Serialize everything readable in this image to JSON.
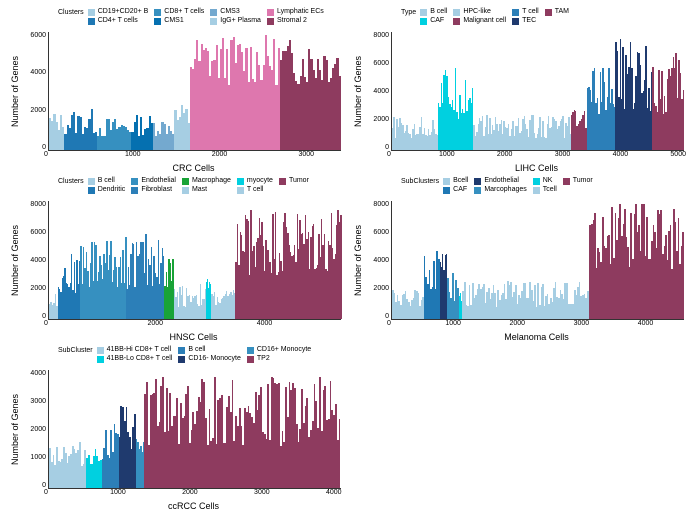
{
  "ylabel": "Number of Genes",
  "panels": [
    {
      "id": "crc",
      "xlabel": "CRC Cells",
      "legend_title": "Clusters",
      "ymax": 6000,
      "yticks": [
        0,
        2000,
        4000,
        6000
      ],
      "xticks": [
        0,
        1000,
        2000,
        3000
      ],
      "xmax": 3400,
      "clusters": [
        {
          "label": "CD19+CD20+ B",
          "color": "#a6cee3",
          "n": 180,
          "hmin": 0.15,
          "hmax": 0.32
        },
        {
          "label": "CD4+ T cells",
          "color": "#1f78b4",
          "n": 380,
          "hmin": 0.12,
          "hmax": 0.35
        },
        {
          "label": "CD8+ T cells",
          "color": "#3690c0",
          "n": 400,
          "hmin": 0.1,
          "hmax": 0.28
        },
        {
          "label": "CMS1",
          "color": "#0570b0",
          "n": 250,
          "hmin": 0.12,
          "hmax": 0.3
        },
        {
          "label": "CMS3",
          "color": "#74a9cf",
          "n": 250,
          "hmin": 0.12,
          "hmax": 0.28
        },
        {
          "label": "IgG+ Plasma",
          "color": "#a6cee3",
          "n": 180,
          "hmin": 0.14,
          "hmax": 0.4
        },
        {
          "label": "Lymphatic ECs",
          "color": "#de77ae",
          "n": 1050,
          "hmin": 0.55,
          "hmax": 0.98
        },
        {
          "label": "Stromal 2",
          "color": "#8e3b5f",
          "n": 710,
          "hmin": 0.55,
          "hmax": 0.95
        }
      ]
    },
    {
      "id": "lihc",
      "xlabel": "LIHC Cells",
      "legend_title": "Type",
      "ymax": 8000,
      "yticks": [
        0,
        2000,
        4000,
        6000,
        8000
      ],
      "xticks": [
        0,
        1000,
        2000,
        3000,
        4000,
        5000
      ],
      "xmax": 5100,
      "clusters": [
        {
          "label": "B cell",
          "color": "#a6cee3",
          "n": 800,
          "hmin": 0.1,
          "hmax": 0.28
        },
        {
          "label": "CAF",
          "color": "#00d0e0",
          "n": 620,
          "hmin": 0.25,
          "hmax": 0.7
        },
        {
          "label": "HPC-like",
          "color": "#a6cee3",
          "n": 1700,
          "hmin": 0.1,
          "hmax": 0.3
        },
        {
          "label": "Malignant cell",
          "color": "#8e3b5f",
          "n": 280,
          "hmin": 0.15,
          "hmax": 0.35
        },
        {
          "label": "T cell",
          "color": "#2c7fb8",
          "n": 500,
          "hmin": 0.3,
          "hmax": 0.7
        },
        {
          "label": "TEC",
          "color": "#1f3a6e",
          "n": 650,
          "hmin": 0.3,
          "hmax": 0.95
        },
        {
          "label": "TAM",
          "color": "#8e3b5f",
          "n": 550,
          "hmin": 0.3,
          "hmax": 0.85
        }
      ]
    },
    {
      "id": "hnsc",
      "xlabel": "HNSC Cells",
      "legend_title": "Clusters",
      "ymax": 8000,
      "yticks": [
        0,
        2000,
        4000,
        6000,
        8000
      ],
      "xticks": [
        0,
        2000,
        4000
      ],
      "xmax": 5400,
      "clusters": [
        {
          "label": "B cell",
          "color": "#a6cee3",
          "n": 160,
          "hmin": 0.1,
          "hmax": 0.22
        },
        {
          "label": "Dendritic",
          "color": "#1f78b4",
          "n": 420,
          "hmin": 0.2,
          "hmax": 0.55
        },
        {
          "label": "Endothelial",
          "color": "#3690c0",
          "n": 850,
          "hmin": 0.25,
          "hmax": 0.7
        },
        {
          "label": "Fibroblast",
          "color": "#2c7fb8",
          "n": 700,
          "hmin": 0.25,
          "hmax": 0.72
        },
        {
          "label": "Macrophage",
          "color": "#19a337",
          "n": 180,
          "hmin": 0.2,
          "hmax": 0.55
        },
        {
          "label": "Mast",
          "color": "#a6cee3",
          "n": 600,
          "hmin": 0.1,
          "hmax": 0.3
        },
        {
          "label": "myocyte",
          "color": "#00d0e0",
          "n": 90,
          "hmin": 0.18,
          "hmax": 0.35
        },
        {
          "label": "T cell",
          "color": "#a6cee3",
          "n": 450,
          "hmin": 0.1,
          "hmax": 0.25
        },
        {
          "label": "Tumor",
          "color": "#8e3b5f",
          "n": 1950,
          "hmin": 0.35,
          "hmax": 0.95
        }
      ]
    },
    {
      "id": "melanoma",
      "xlabel": "Melanoma Cells",
      "legend_title": "SubClusters",
      "ymax": 8000,
      "yticks": [
        0,
        2000,
        4000,
        6000,
        8000
      ],
      "xticks": [
        0,
        1000,
        2000,
        3000,
        4000
      ],
      "xmax": 4600,
      "clusters": [
        {
          "label": "Bcell",
          "color": "#a6cee3",
          "n": 500,
          "hmin": 0.1,
          "hmax": 0.25
        },
        {
          "label": "CAF",
          "color": "#1f78b4",
          "n": 250,
          "hmin": 0.2,
          "hmax": 0.65
        },
        {
          "label": "Endothelial",
          "color": "#1f3a6e",
          "n": 120,
          "hmin": 0.25,
          "hmax": 0.55
        },
        {
          "label": "Marcophages",
          "color": "#3690c0",
          "n": 180,
          "hmin": 0.15,
          "hmax": 0.4
        },
        {
          "label": "NK",
          "color": "#00d0e0",
          "n": 60,
          "hmin": 0.12,
          "hmax": 0.26
        },
        {
          "label": "Tcell",
          "color": "#a6cee3",
          "n": 2000,
          "hmin": 0.1,
          "hmax": 0.32
        },
        {
          "label": "Tumor",
          "color": "#8e3b5f",
          "n": 1490,
          "hmin": 0.4,
          "hmax": 0.98
        }
      ]
    },
    {
      "id": "ccrcc",
      "xlabel": "ccRCC Cells",
      "legend_title": "SubCluster",
      "ymax": 4000,
      "yticks": [
        0,
        1000,
        2000,
        3000,
        4000
      ],
      "xticks": [
        0,
        1000,
        2000,
        3000,
        4000
      ],
      "xmax": 4100,
      "clusters": [
        {
          "label": "41BB-Hi CD8+ T cell",
          "color": "#a6cee3",
          "n": 520,
          "hmin": 0.18,
          "hmax": 0.4
        },
        {
          "label": "41BB-Lo CD8+ T cell",
          "color": "#00d0e0",
          "n": 220,
          "hmin": 0.18,
          "hmax": 0.35
        },
        {
          "label": "B cell",
          "color": "#2c7fb8",
          "n": 240,
          "hmin": 0.22,
          "hmax": 0.55
        },
        {
          "label": "CD16- Monocyte",
          "color": "#1f3a6e",
          "n": 240,
          "hmin": 0.28,
          "hmax": 0.7
        },
        {
          "label": "CD16+ Monocyte",
          "color": "#3690c0",
          "n": 120,
          "hmin": 0.22,
          "hmax": 0.45
        },
        {
          "label": "TP2",
          "color": "#8e3b5f",
          "n": 2760,
          "hmin": 0.35,
          "hmax": 0.95
        }
      ]
    }
  ]
}
